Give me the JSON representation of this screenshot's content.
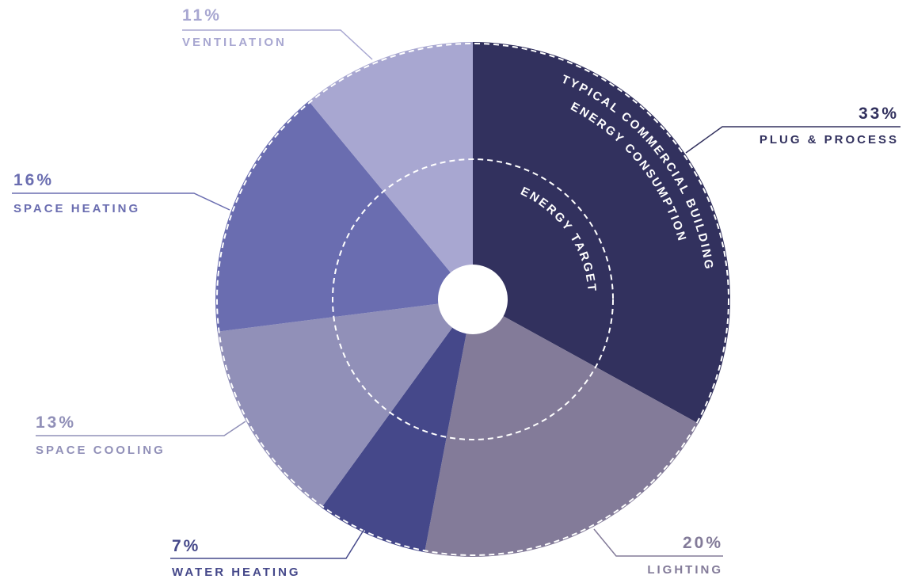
{
  "chart_data": {
    "type": "pie",
    "categories": [
      "PLUG & PROCESS",
      "LIGHTING",
      "WATER HEATING",
      "SPACE COOLING",
      "SPACE HEATING",
      "VENTILATION"
    ],
    "values": [
      33,
      20,
      7,
      13,
      16,
      11
    ],
    "value_labels": [
      "33%",
      "20%",
      "7%",
      "13%",
      "16%",
      "11%"
    ],
    "colors": [
      "#32315e",
      "#837b99",
      "#45488a",
      "#9190b8",
      "#6a6db0",
      "#a8a7d1"
    ],
    "outer_label": [
      "TYPICAL COMMERCIAL BUILDING",
      "ENERGY CONSUMPTION"
    ],
    "inner_label": "ENERGY TARGET"
  }
}
